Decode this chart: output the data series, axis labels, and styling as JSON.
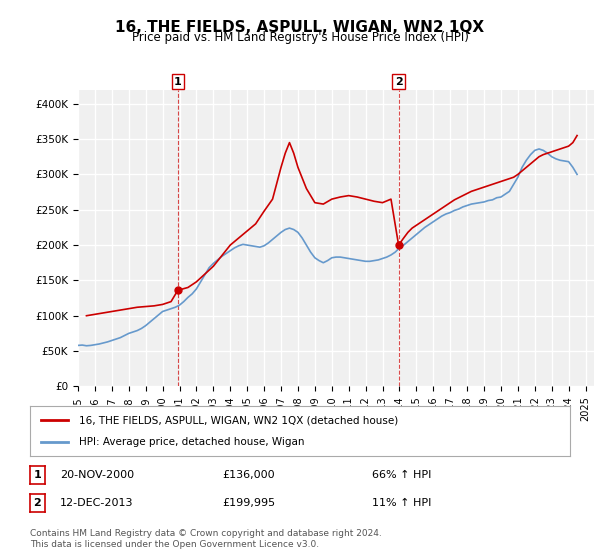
{
  "title": "16, THE FIELDS, ASPULL, WIGAN, WN2 1QX",
  "subtitle": "Price paid vs. HM Land Registry's House Price Index (HPI)",
  "ylabel_ticks": [
    "£0",
    "£50K",
    "£100K",
    "£150K",
    "£200K",
    "£250K",
    "£300K",
    "£350K",
    "£400K"
  ],
  "ytick_values": [
    0,
    50000,
    100000,
    150000,
    200000,
    250000,
    300000,
    350000,
    400000
  ],
  "ylim": [
    0,
    420000
  ],
  "xlim_start": 1995.0,
  "xlim_end": 2025.5,
  "background_color": "#ffffff",
  "plot_bg_color": "#f0f0f0",
  "grid_color": "#ffffff",
  "hpi_color": "#6699cc",
  "price_color": "#cc0000",
  "annotation1_date": "20-NOV-2000",
  "annotation1_price": "£136,000",
  "annotation1_pct": "66% ↑ HPI",
  "annotation2_date": "12-DEC-2013",
  "annotation2_price": "£199,995",
  "annotation2_pct": "11% ↑ HPI",
  "legend_label1": "16, THE FIELDS, ASPULL, WIGAN, WN2 1QX (detached house)",
  "legend_label2": "HPI: Average price, detached house, Wigan",
  "footer": "Contains HM Land Registry data © Crown copyright and database right 2024.\nThis data is licensed under the Open Government Licence v3.0.",
  "marker1_x": 2000.9,
  "marker1_y": 136000,
  "marker2_x": 2013.95,
  "marker2_y": 199995,
  "vline1_x": 2000.9,
  "vline2_x": 2013.95,
  "hpi_data_x": [
    1995.0,
    1995.25,
    1995.5,
    1995.75,
    1996.0,
    1996.25,
    1996.5,
    1996.75,
    1997.0,
    1997.25,
    1997.5,
    1997.75,
    1998.0,
    1998.25,
    1998.5,
    1998.75,
    1999.0,
    1999.25,
    1999.5,
    1999.75,
    2000.0,
    2000.25,
    2000.5,
    2000.75,
    2001.0,
    2001.25,
    2001.5,
    2001.75,
    2002.0,
    2002.25,
    2002.5,
    2002.75,
    2003.0,
    2003.25,
    2003.5,
    2003.75,
    2004.0,
    2004.25,
    2004.5,
    2004.75,
    2005.0,
    2005.25,
    2005.5,
    2005.75,
    2006.0,
    2006.25,
    2006.5,
    2006.75,
    2007.0,
    2007.25,
    2007.5,
    2007.75,
    2008.0,
    2008.25,
    2008.5,
    2008.75,
    2009.0,
    2009.25,
    2009.5,
    2009.75,
    2010.0,
    2010.25,
    2010.5,
    2010.75,
    2011.0,
    2011.25,
    2011.5,
    2011.75,
    2012.0,
    2012.25,
    2012.5,
    2012.75,
    2013.0,
    2013.25,
    2013.5,
    2013.75,
    2014.0,
    2014.25,
    2014.5,
    2014.75,
    2015.0,
    2015.25,
    2015.5,
    2015.75,
    2016.0,
    2016.25,
    2016.5,
    2016.75,
    2017.0,
    2017.25,
    2017.5,
    2017.75,
    2018.0,
    2018.25,
    2018.5,
    2018.75,
    2019.0,
    2019.25,
    2019.5,
    2019.75,
    2020.0,
    2020.25,
    2020.5,
    2020.75,
    2021.0,
    2021.25,
    2021.5,
    2021.75,
    2022.0,
    2022.25,
    2022.5,
    2022.75,
    2023.0,
    2023.25,
    2023.5,
    2023.75,
    2024.0,
    2024.25,
    2024.5
  ],
  "hpi_data_y": [
    58000,
    58500,
    57500,
    58000,
    59000,
    60000,
    61500,
    63000,
    65000,
    67000,
    69000,
    72000,
    75000,
    77000,
    79000,
    82000,
    86000,
    91000,
    96000,
    101000,
    106000,
    108000,
    110000,
    112000,
    115000,
    120000,
    126000,
    131000,
    138000,
    148000,
    158000,
    168000,
    174000,
    179000,
    184000,
    188000,
    192000,
    196000,
    199000,
    201000,
    200000,
    199000,
    198000,
    197000,
    199000,
    203000,
    208000,
    213000,
    218000,
    222000,
    224000,
    222000,
    218000,
    210000,
    200000,
    190000,
    182000,
    178000,
    175000,
    178000,
    182000,
    183000,
    183000,
    182000,
    181000,
    180000,
    179000,
    178000,
    177000,
    177000,
    178000,
    179000,
    181000,
    183000,
    186000,
    190000,
    196000,
    200000,
    205000,
    210000,
    215000,
    220000,
    225000,
    229000,
    233000,
    237000,
    241000,
    244000,
    246000,
    249000,
    251000,
    254000,
    256000,
    258000,
    259000,
    260000,
    261000,
    263000,
    264000,
    267000,
    268000,
    272000,
    276000,
    286000,
    296000,
    310000,
    320000,
    328000,
    334000,
    336000,
    334000,
    330000,
    325000,
    322000,
    320000,
    319000,
    318000,
    310000,
    300000
  ],
  "price_data_x": [
    1995.5,
    1996.0,
    1996.5,
    1997.0,
    1997.5,
    1998.0,
    1998.5,
    1999.0,
    1999.5,
    2000.0,
    2000.5,
    2000.9,
    2001.5,
    2002.0,
    2003.0,
    2004.0,
    2005.0,
    2005.5,
    2006.0,
    2006.5,
    2007.0,
    2007.25,
    2007.5,
    2007.75,
    2008.0,
    2008.5,
    2009.0,
    2009.5,
    2010.0,
    2010.5,
    2011.0,
    2011.5,
    2012.0,
    2012.5,
    2013.0,
    2013.5,
    2013.95,
    2014.25,
    2014.5,
    2014.75,
    2015.0,
    2015.25,
    2015.5,
    2015.75,
    2016.0,
    2016.25,
    2016.5,
    2016.75,
    2017.0,
    2017.25,
    2017.5,
    2017.75,
    2018.0,
    2018.25,
    2018.5,
    2018.75,
    2019.0,
    2019.25,
    2019.5,
    2019.75,
    2020.0,
    2020.25,
    2020.75,
    2021.0,
    2021.25,
    2021.5,
    2021.75,
    2022.0,
    2022.25,
    2022.5,
    2022.75,
    2023.0,
    2023.25,
    2023.5,
    2023.75,
    2024.0,
    2024.25,
    2024.5
  ],
  "price_data_y": [
    100000,
    102000,
    104000,
    106000,
    108000,
    110000,
    112000,
    113000,
    114000,
    116000,
    120000,
    136000,
    140000,
    148000,
    170000,
    200000,
    220000,
    230000,
    248000,
    265000,
    310000,
    330000,
    345000,
    330000,
    310000,
    280000,
    260000,
    258000,
    265000,
    268000,
    270000,
    268000,
    265000,
    262000,
    260000,
    265000,
    199995,
    210000,
    218000,
    224000,
    228000,
    232000,
    236000,
    240000,
    244000,
    248000,
    252000,
    256000,
    260000,
    264000,
    267000,
    270000,
    273000,
    276000,
    278000,
    280000,
    282000,
    284000,
    286000,
    288000,
    290000,
    292000,
    296000,
    300000,
    305000,
    310000,
    315000,
    320000,
    325000,
    328000,
    330000,
    332000,
    334000,
    336000,
    338000,
    340000,
    345000,
    355000
  ]
}
